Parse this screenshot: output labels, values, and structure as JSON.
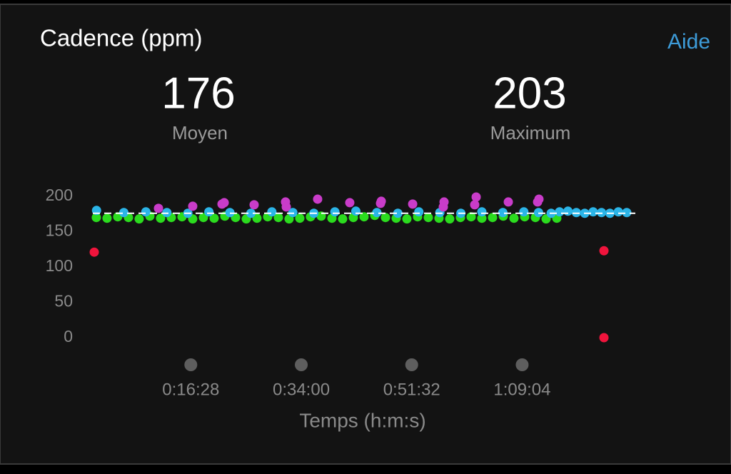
{
  "header": {
    "title": "Cadence (ppm)",
    "help_link": "Aide"
  },
  "stats": [
    {
      "value": 176,
      "label": "Moyen"
    },
    {
      "value": 203,
      "label": "Maximum"
    }
  ],
  "chart_data": {
    "type": "scatter",
    "x_label": "Temps (h:m:s)",
    "xlim": [
      0,
      5290
    ],
    "ylim": [
      0,
      200
    ],
    "xticks": [
      {
        "value": 988,
        "label": "0:16:28"
      },
      {
        "value": 2040,
        "label": "0:34:00"
      },
      {
        "value": 3092,
        "label": "0:51:32"
      },
      {
        "value": 4144,
        "label": "1:09:04"
      }
    ],
    "yticks": [
      0,
      50,
      100,
      150,
      200
    ],
    "average_line": {
      "color": "#ffffff",
      "style": "dashed"
    },
    "series": [
      {
        "color": "#2bdc1e",
        "x": [
          88,
          190,
          292,
          394,
          496,
          598,
          700,
          802,
          904,
          1006,
          1108,
          1210,
          1312,
          1414,
          1516,
          1618,
          1720,
          1822,
          1924,
          2026,
          2128,
          2230,
          2332,
          2434,
          2536,
          2638,
          2740,
          2842,
          2944,
          3046,
          3148,
          3250,
          3352,
          3454,
          3556,
          3658,
          3760,
          3862,
          3964,
          4066,
          4168,
          4270,
          4372,
          4474
        ],
        "values": [
          170,
          169,
          171,
          170,
          168,
          172,
          169,
          170,
          171,
          168,
          170,
          169,
          172,
          170,
          168,
          169,
          171,
          170,
          168,
          169,
          171,
          172,
          169,
          168,
          170,
          171,
          173,
          170,
          169,
          168,
          171,
          170,
          169,
          168,
          170,
          171,
          169,
          170,
          172,
          169,
          171,
          170,
          168,
          169
        ]
      },
      {
        "color": "#2bb5e8",
        "x": [
          90,
          350,
          560,
          760,
          960,
          1160,
          1360,
          1560,
          1760,
          1960,
          2160,
          2360,
          2560,
          2760,
          2960,
          3160,
          3360,
          3560,
          3760,
          3960,
          4160,
          4300,
          4420,
          4500,
          4580,
          4660,
          4740,
          4820,
          4900,
          4980,
          5060,
          5140
        ],
        "values": [
          180,
          177,
          178,
          177,
          176,
          178,
          177,
          176,
          178,
          177,
          176,
          178,
          179,
          177,
          176,
          178,
          177,
          176,
          178,
          177,
          178,
          177,
          176,
          178,
          179,
          177,
          176,
          178,
          177,
          176,
          178,
          177
        ]
      },
      {
        "color": "#c93cc9",
        "x": [
          680,
          1006,
          1285,
          1306,
          1591,
          1890,
          1897,
          2196,
          2502,
          2795,
          2802,
          3101,
          3393,
          3400,
          3692,
          3706,
          4012,
          4291,
          4304
        ],
        "values": [
          183,
          186,
          189,
          191,
          188,
          192,
          185,
          196,
          191,
          190,
          193,
          189,
          185,
          192,
          188,
          199,
          192,
          192,
          196
        ]
      },
      {
        "color": "#f0143c",
        "x": [
          68,
          4923,
          4923
        ],
        "values": [
          121,
          123,
          0
        ]
      }
    ]
  }
}
